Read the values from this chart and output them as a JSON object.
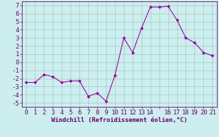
{
  "x": [
    0,
    1,
    2,
    3,
    4,
    5,
    6,
    7,
    8,
    9,
    10,
    11,
    12,
    13,
    14,
    15,
    16,
    17,
    18,
    19,
    20,
    21
  ],
  "y": [
    -2.5,
    -2.5,
    -1.5,
    -1.8,
    -2.5,
    -2.3,
    -2.3,
    -4.2,
    -3.8,
    -4.8,
    -1.6,
    3.0,
    1.2,
    4.2,
    6.8,
    6.8,
    6.9,
    5.2,
    3.0,
    2.4,
    1.2,
    0.8
  ],
  "line_color": "#990099",
  "marker": "D",
  "marker_size": 2.0,
  "bg_color": "#cceeee",
  "grid_color": "#aacccc",
  "xlabel": "Windchill (Refroidissement éolien,°C)",
  "xlabel_fontsize": 6.5,
  "tick_fontsize": 6.5,
  "ylim": [
    -5.5,
    7.5
  ],
  "xlim": [
    -0.5,
    21.5
  ],
  "yticks": [
    -5,
    -4,
    -3,
    -2,
    -1,
    0,
    1,
    2,
    3,
    4,
    5,
    6,
    7
  ],
  "xticks": [
    0,
    1,
    2,
    3,
    4,
    5,
    6,
    7,
    8,
    9,
    10,
    11,
    12,
    13,
    14,
    15,
    16,
    17,
    18,
    19,
    20,
    21
  ],
  "xtick_labels": [
    "0",
    "1",
    "2",
    "3",
    "4",
    "5",
    "6",
    "7",
    "8",
    "9",
    "10",
    "11",
    "12",
    "13",
    "14",
    "",
    "16",
    "17",
    "18",
    "19",
    "20",
    "21"
  ]
}
